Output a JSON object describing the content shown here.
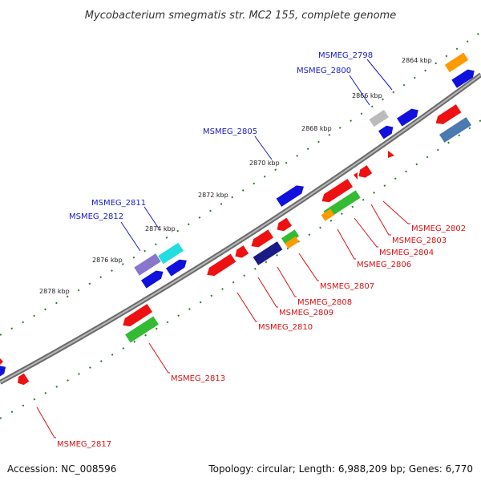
{
  "title": "Mycobacterium smegmatis str. MC2 155, complete genome",
  "footer": {
    "accession": "Accession: NC_008596",
    "topology": "Topology: circular; Length: 6,988,209 bp; Genes: 6,770"
  },
  "ticks": [
    "2864 kbp",
    "2866 kbp",
    "2868 kbp",
    "2870 kbp",
    "2872 kbp",
    "2874 kbp",
    "2876 kbp",
    "2878 kbp"
  ],
  "colors": {
    "forward_label": "#1a1acc",
    "reverse_label": "#dd1111",
    "backbone": "#888888",
    "tick": "#2a7a2a",
    "red": "#ee1111",
    "blue": "#1111dd",
    "green": "#33bb33",
    "orange": "#ff9900",
    "cyan": "#22dddd",
    "purple": "#8877cc",
    "navy": "#1a1a88",
    "steel": "#4a7ab0",
    "gray": "#bbbbbb"
  },
  "gene_labels": [
    "MSMEG_2798",
    "MSMEG_2800",
    "MSMEG_2805",
    "MSMEG_2811",
    "MSMEG_2812",
    "MSMEG_2802",
    "MSMEG_2803",
    "MSMEG_2804",
    "MSMEG_2806",
    "MSMEG_2807",
    "MSMEG_2808",
    "MSMEG_2809",
    "MSMEG_2810",
    "MSMEG_2813",
    "MSMEG_2817"
  ]
}
